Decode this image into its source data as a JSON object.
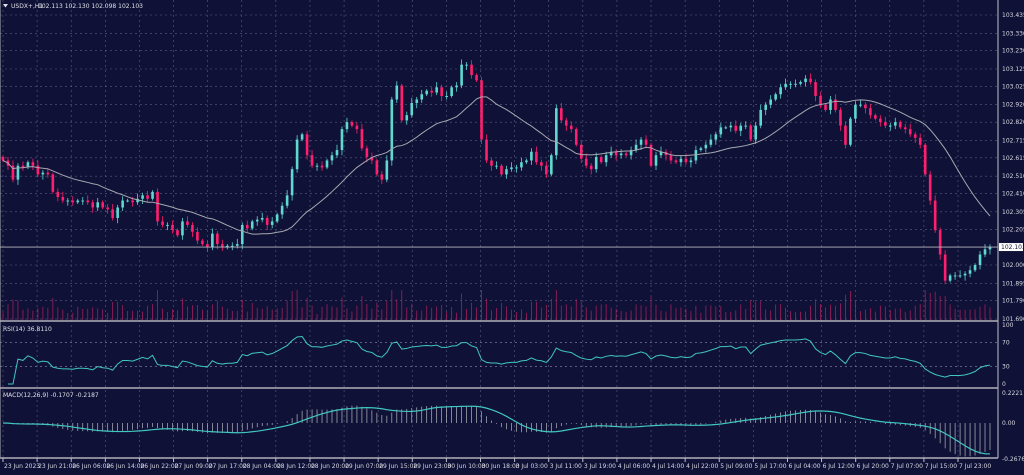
{
  "header": {
    "symbol_timeframe": "USDX+,H1",
    "ohlc_text": "102.113 102.130 102.098 102.103"
  },
  "colors": {
    "background": "#0f1136",
    "bull": "#5fd8d0",
    "bear": "#ff1f6e",
    "ma": "#a8a8b0",
    "grid": "#5a5d80",
    "volume": "#a0205a",
    "rsi": "#40c8c0",
    "macd_hist": "#b8b8c0",
    "macd_signal": "#40c8c0"
  },
  "chart_data": [
    {
      "type": "candlestick",
      "title": "USDX+,H1",
      "ylim": [
        101.69,
        103.435
      ],
      "y_ticks": [
        "103.435",
        "103.330",
        "103.230",
        "103.125",
        "103.025",
        "102.920",
        "102.820",
        "102.715",
        "102.615",
        "102.510",
        "102.410",
        "102.305",
        "102.205",
        "102.000",
        "101.895",
        "101.796",
        "101.690"
      ],
      "current_price_label": "102.103",
      "x_ticks": [
        "23 Jun 2023",
        "23 Jun 21:00",
        "26 Jun 06:00",
        "26 Jun 14:00",
        "26 Jun 22:00",
        "27 Jun 09:00",
        "27 Jun 17:00",
        "28 Jun 04:00",
        "28 Jun 12:00",
        "28 Jun 20:00",
        "29 Jun 07:00",
        "29 Jun 15:00",
        "29 Jun 23:00",
        "30 Jun 10:00",
        "30 Jun 18:00",
        "3 Jul 03:00",
        "3 Jul 11:00",
        "3 Jul 19:00",
        "4 Jul 06:00",
        "4 Jul 14:00",
        "4 Jul 22:00",
        "5 Jul 09:00",
        "5 Jul 17:00",
        "6 Jul 04:00",
        "6 Jul 12:00",
        "6 Jul 20:00",
        "7 Jul 07:00",
        "7 Jul 15:00",
        "7 Jul 23:00"
      ],
      "grid": true,
      "overlay": "moving average",
      "closes": [
        102.6,
        102.57,
        102.49,
        102.57,
        102.56,
        102.59,
        102.57,
        102.52,
        102.53,
        102.52,
        102.42,
        102.39,
        102.37,
        102.37,
        102.36,
        102.37,
        102.37,
        102.36,
        102.33,
        102.36,
        102.33,
        102.32,
        102.27,
        102.33,
        102.37,
        102.37,
        102.36,
        102.38,
        102.4,
        102.38,
        102.42,
        102.25,
        102.23,
        102.23,
        102.2,
        102.17,
        102.25,
        102.23,
        102.19,
        102.14,
        102.12,
        102.1,
        102.18,
        102.12,
        102.1,
        102.11,
        102.11,
        102.12,
        102.23,
        102.21,
        102.25,
        102.26,
        102.27,
        102.23,
        102.25,
        102.29,
        102.34,
        102.4,
        102.55,
        102.72,
        102.75,
        102.63,
        102.57,
        102.57,
        102.56,
        102.6,
        102.63,
        102.66,
        102.78,
        102.82,
        102.8,
        102.78,
        102.67,
        102.62,
        102.6,
        102.52,
        102.49,
        102.6,
        102.95,
        103.03,
        102.83,
        102.86,
        102.93,
        102.95,
        102.98,
        103.0,
        102.99,
        103.02,
        102.97,
        102.97,
        103.02,
        103.03,
        103.15,
        103.15,
        103.09,
        103.06,
        102.72,
        102.6,
        102.57,
        102.57,
        102.52,
        102.55,
        102.56,
        102.56,
        102.59,
        102.6,
        102.65,
        102.59,
        102.57,
        102.52,
        102.63,
        102.9,
        102.83,
        102.8,
        102.78,
        102.69,
        102.61,
        102.57,
        102.55,
        102.62,
        102.59,
        102.63,
        102.65,
        102.63,
        102.64,
        102.63,
        102.66,
        102.69,
        102.72,
        102.69,
        102.57,
        102.63,
        102.65,
        102.63,
        102.6,
        102.59,
        102.61,
        102.59,
        102.6,
        102.66,
        102.67,
        102.69,
        102.72,
        102.75,
        102.79,
        102.79,
        102.8,
        102.77,
        102.8,
        102.8,
        102.72,
        102.8,
        102.89,
        102.92,
        102.95,
        102.98,
        103.02,
        103.04,
        103.04,
        103.04,
        103.05,
        103.07,
        103.05,
        102.97,
        102.92,
        102.89,
        102.95,
        102.89,
        102.8,
        102.69,
        102.84,
        102.92,
        102.92,
        102.9,
        102.86,
        102.84,
        102.82,
        102.8,
        102.8,
        102.82,
        102.79,
        102.78,
        102.75,
        102.73,
        102.69,
        102.52,
        102.37,
        102.2,
        102.06,
        101.91,
        101.94,
        101.94,
        101.94,
        101.95,
        101.97,
        102.0,
        102.06,
        102.09,
        102.103
      ]
    },
    {
      "type": "line",
      "title": "RSI(14) 36.8110",
      "ylim": [
        0,
        100
      ],
      "y_ticks": [
        "100",
        "70",
        "30",
        "0"
      ]
    },
    {
      "type": "bar+line",
      "title": "MACD(12,26,9) -0.1707 -0.2187",
      "ylim": [
        -0.2676,
        0.2221
      ],
      "y_ticks": [
        "0.2221",
        "0.00",
        "-0.2676"
      ]
    }
  ]
}
